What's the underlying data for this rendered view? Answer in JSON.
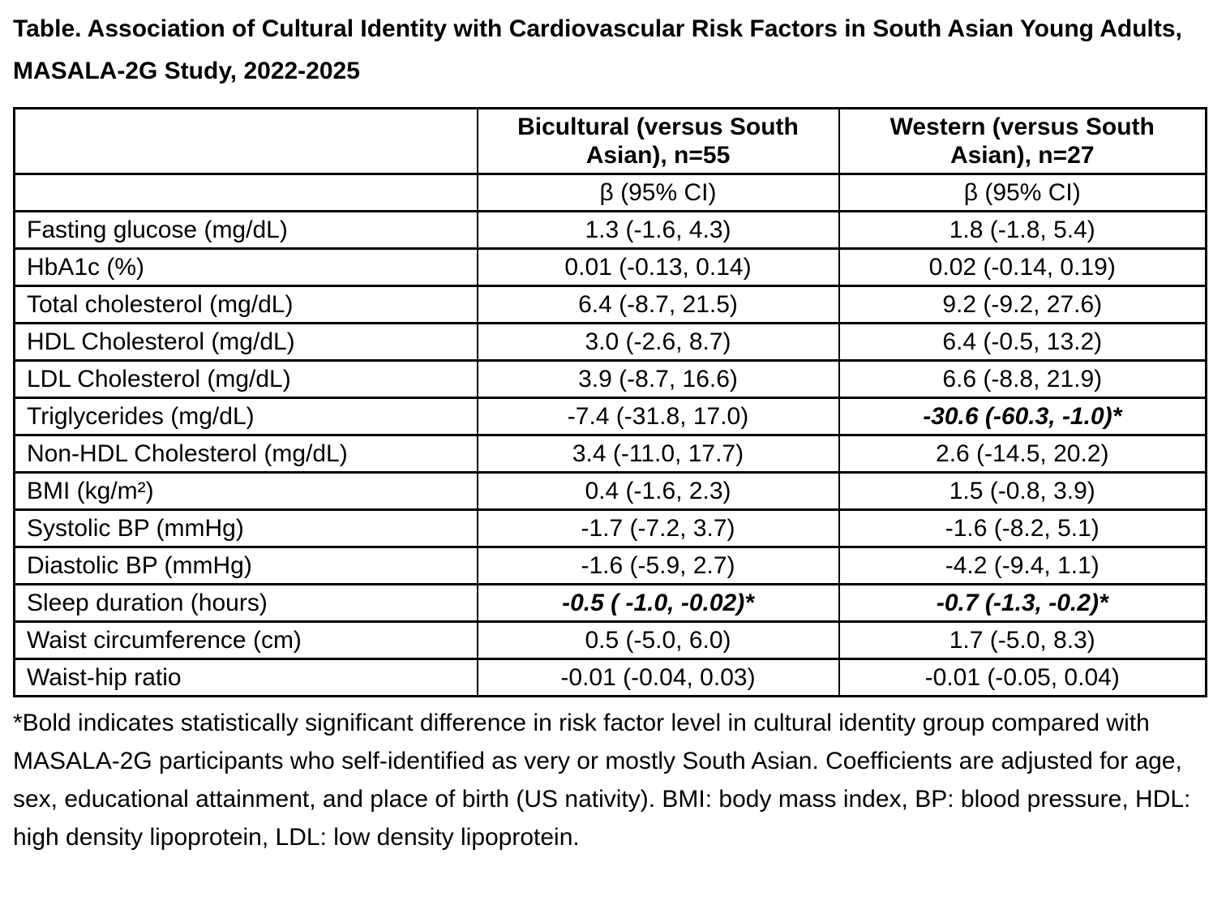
{
  "page": {
    "title": "Table. Association of Cultural Identity with Cardiovascular Risk Factors in South Asian Young Adults, MASALA-2G Study, 2022-2025",
    "footnote": "*Bold indicates statistically significant difference in risk factor level in cultural identity group compared with MASALA-2G participants who self-identified as very or mostly South Asian. Coefficients are adjusted for age, sex, educational attainment, and place of birth (US nativity). BMI: body mass index, BP: blood pressure, HDL: high density lipoprotein, LDL: low density lipoprotein."
  },
  "table": {
    "columns": {
      "bicultural": "Bicultural (versus South Asian), n=55",
      "western": "Western (versus South Asian), n=27"
    },
    "subheader": {
      "bicultural": "β (95% CI)",
      "western": "β (95% CI)"
    },
    "rows": [
      {
        "label": "Fasting glucose (mg/dL)",
        "bicultural": "1.3 (-1.6, 4.3)",
        "western": "1.8 (-1.8, 5.4)",
        "bicultural_significant": false,
        "western_significant": false
      },
      {
        "label": "HbA1c (%)",
        "bicultural": "0.01 (-0.13, 0.14)",
        "western": "0.02 (-0.14, 0.19)",
        "bicultural_significant": false,
        "western_significant": false
      },
      {
        "label": "Total cholesterol (mg/dL)",
        "bicultural": "6.4 (-8.7, 21.5)",
        "western": "9.2 (-9.2, 27.6)",
        "bicultural_significant": false,
        "western_significant": false
      },
      {
        "label": "HDL Cholesterol (mg/dL)",
        "bicultural": "3.0 (-2.6, 8.7)",
        "western": "6.4 (-0.5, 13.2)",
        "bicultural_significant": false,
        "western_significant": false
      },
      {
        "label": "LDL Cholesterol (mg/dL)",
        "bicultural": "3.9 (-8.7, 16.6)",
        "western": "6.6 (-8.8, 21.9)",
        "bicultural_significant": false,
        "western_significant": false
      },
      {
        "label": "Triglycerides (mg/dL)",
        "bicultural": "-7.4 (-31.8, 17.0)",
        "western": "-30.6 (-60.3, -1.0)*",
        "bicultural_significant": false,
        "western_significant": true
      },
      {
        "label": "Non-HDL Cholesterol (mg/dL)",
        "bicultural": "3.4 (-11.0, 17.7)",
        "western": "2.6 (-14.5, 20.2)",
        "bicultural_significant": false,
        "western_significant": false
      },
      {
        "label": "BMI (kg/m²)",
        "bicultural": "0.4 (-1.6, 2.3)",
        "western": "1.5 (-0.8, 3.9)",
        "bicultural_significant": false,
        "western_significant": false
      },
      {
        "label": "Systolic BP (mmHg)",
        "bicultural": "-1.7 (-7.2, 3.7)",
        "western": "-1.6 (-8.2, 5.1)",
        "bicultural_significant": false,
        "western_significant": false
      },
      {
        "label": "Diastolic BP (mmHg)",
        "bicultural": "-1.6 (-5.9, 2.7)",
        "western": "-4.2 (-9.4, 1.1)",
        "bicultural_significant": false,
        "western_significant": false
      },
      {
        "label": "Sleep duration (hours)",
        "bicultural": "-0.5 ( -1.0, -0.02)*",
        "western": "-0.7 (-1.3, -0.2)*",
        "bicultural_significant": true,
        "western_significant": true
      },
      {
        "label": "Waist circumference (cm)",
        "bicultural": "0.5 (-5.0, 6.0)",
        "western": "1.7 (-5.0, 8.3)",
        "bicultural_significant": false,
        "western_significant": false
      },
      {
        "label": "Waist-hip ratio",
        "bicultural": "-0.01 (-0.04, 0.03)",
        "western": "-0.01 (-0.05, 0.04)",
        "bicultural_significant": false,
        "western_significant": false
      }
    ]
  }
}
